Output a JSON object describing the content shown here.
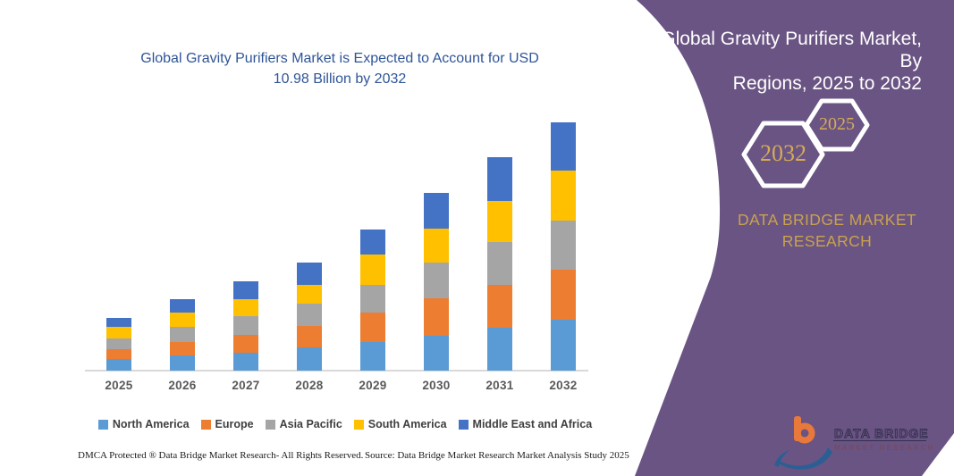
{
  "chart": {
    "title_line1": "Global Gravity Purifiers Market is Expected to Account for USD",
    "title_line2": "10.98 Billion by 2032",
    "title_color": "#2F5597"
  },
  "chart_data": {
    "type": "bar",
    "stacked": true,
    "title": "Global Gravity Purifiers Market is Expected to Account for USD 10.98 Billion by 2032",
    "units": "USD Billion",
    "xlabel": "",
    "ylabel": "",
    "ylim": [
      0,
      11.5
    ],
    "grid": false,
    "legend_position": "bottom",
    "categories": [
      "2025",
      "2026",
      "2027",
      "2028",
      "2029",
      "2030",
      "2031",
      "2032"
    ],
    "series": [
      {
        "name": "North America",
        "color": "#5B9BD5",
        "values": [
          0.51,
          0.68,
          0.8,
          1.04,
          1.28,
          1.54,
          1.9,
          2.24
        ]
      },
      {
        "name": "Europe",
        "color": "#ED7D31",
        "values": [
          0.46,
          0.58,
          0.79,
          0.92,
          1.3,
          1.66,
          1.88,
          2.21
        ]
      },
      {
        "name": "Asia Pacific",
        "color": "#A5A5A5",
        "values": [
          0.46,
          0.67,
          0.83,
          0.99,
          1.22,
          1.59,
          1.91,
          2.18
        ]
      },
      {
        "name": "South America",
        "color": "#FFC000",
        "values": [
          0.5,
          0.64,
          0.75,
          0.83,
          1.33,
          1.51,
          1.83,
          2.2
        ]
      },
      {
        "name": "Middle East and Africa",
        "color": "#4472C4",
        "values": [
          0.42,
          0.59,
          0.79,
          1.01,
          1.13,
          1.55,
          1.91,
          2.15
        ]
      }
    ],
    "totals": [
      2.35,
      3.16,
      3.96,
      4.79,
      6.26,
      7.85,
      9.43,
      10.98
    ]
  },
  "footer": {
    "left": "DMCA Protected ® Data Bridge Market Research-  All Rights Reserved.",
    "right": "Source: Data Bridge Market Research  Market Analysis Study 2025"
  },
  "panel": {
    "background_color": "#6A5483",
    "title_line1": "Global Gravity Purifiers Market, By",
    "title_line2": "Regions, 2025 to 2032",
    "badge_back_year": "2032",
    "badge_front_year": "2025",
    "brand_text": "DATA BRIDGE MARKET RESEARCH",
    "brand_color": "#C9A24E"
  },
  "logo": {
    "brand": "DATA BRIDGE",
    "tagline": "MARKET RESEARCH"
  }
}
